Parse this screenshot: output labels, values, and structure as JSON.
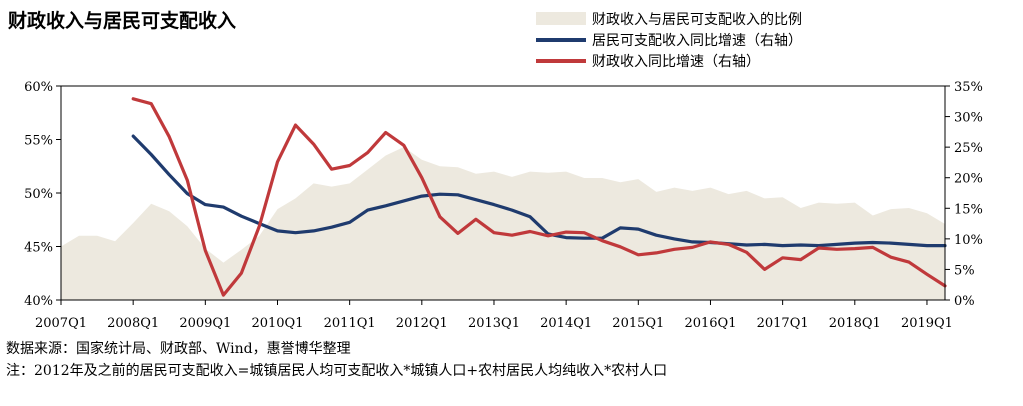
{
  "header": {
    "title": "财政收入与居民可支配收入"
  },
  "legend": [
    {
      "label": "财政收入与居民可支配收入的比例",
      "kind": "area",
      "color": "#ede9df"
    },
    {
      "label": "居民可支配收入同比增速（右轴）",
      "kind": "line",
      "color": "#1f3b6e"
    },
    {
      "label": "财政收入同比增速（右轴）",
      "kind": "line",
      "color": "#c0393b"
    }
  ],
  "notes": {
    "source": "数据来源：国家统计局、财政部、Wind，惠誉博华整理",
    "footnote": "注：2012年及之前的居民可支配收入=城镇居民人均可支配收入*城镇人口+农村居民人均纯收入*农村人口"
  },
  "chart_data": {
    "type": "line",
    "title": "财政收入与居民可支配收入",
    "x_ticks": [
      "2007Q1",
      "2008Q1",
      "2009Q1",
      "2010Q1",
      "2011Q1",
      "2012Q1",
      "2013Q1",
      "2014Q1",
      "2015Q1",
      "2016Q1",
      "2017Q1",
      "2018Q1",
      "2019Q1"
    ],
    "x_range": [
      2007.0,
      2019.25
    ],
    "y_left": {
      "ticks": [
        "40%",
        "45%",
        "50%",
        "55%",
        "60%"
      ],
      "range": [
        40,
        60
      ]
    },
    "y_right": {
      "ticks": [
        "0%",
        "5%",
        "10%",
        "15%",
        "20%",
        "25%",
        "30%",
        "35%"
      ],
      "range": [
        0,
        35
      ]
    },
    "series": [
      {
        "name": "财政收入与居民可支配收入的比例",
        "type": "area",
        "axis": "left",
        "color": "#ede9df",
        "points": [
          [
            2007.0,
            45.0
          ],
          [
            2007.25,
            46.0
          ],
          [
            2007.5,
            46.0
          ],
          [
            2007.75,
            45.5
          ],
          [
            2008.0,
            47.2
          ],
          [
            2008.25,
            49.0
          ],
          [
            2008.5,
            48.3
          ],
          [
            2008.75,
            46.9
          ],
          [
            2009.0,
            44.8
          ],
          [
            2009.25,
            43.5
          ],
          [
            2009.5,
            44.7
          ],
          [
            2009.75,
            46.0
          ],
          [
            2010.0,
            48.5
          ],
          [
            2010.25,
            49.5
          ],
          [
            2010.5,
            50.9
          ],
          [
            2010.75,
            50.6
          ],
          [
            2011.0,
            50.9
          ],
          [
            2011.25,
            52.2
          ],
          [
            2011.5,
            53.5
          ],
          [
            2011.75,
            54.3
          ],
          [
            2012.0,
            53.1
          ],
          [
            2012.25,
            52.5
          ],
          [
            2012.5,
            52.4
          ],
          [
            2012.75,
            51.8
          ],
          [
            2013.0,
            52.0
          ],
          [
            2013.25,
            51.5
          ],
          [
            2013.5,
            52.0
          ],
          [
            2013.75,
            51.9
          ],
          [
            2014.0,
            52.0
          ],
          [
            2014.25,
            51.4
          ],
          [
            2014.5,
            51.4
          ],
          [
            2014.75,
            51.0
          ],
          [
            2015.0,
            51.3
          ],
          [
            2015.25,
            50.1
          ],
          [
            2015.5,
            50.5
          ],
          [
            2015.75,
            50.2
          ],
          [
            2016.0,
            50.5
          ],
          [
            2016.25,
            49.9
          ],
          [
            2016.5,
            50.2
          ],
          [
            2016.75,
            49.5
          ],
          [
            2017.0,
            49.6
          ],
          [
            2017.25,
            48.6
          ],
          [
            2017.5,
            49.1
          ],
          [
            2017.75,
            49.0
          ],
          [
            2018.0,
            49.1
          ],
          [
            2018.25,
            47.9
          ],
          [
            2018.5,
            48.5
          ],
          [
            2018.75,
            48.6
          ],
          [
            2019.0,
            48.1
          ],
          [
            2019.25,
            47.1
          ]
        ]
      },
      {
        "name": "居民可支配收入同比增速（右轴）",
        "type": "line",
        "axis": "right",
        "color": "#1f3b6e",
        "points": [
          [
            2008.0,
            26.8
          ],
          [
            2008.25,
            23.8
          ],
          [
            2008.5,
            20.5
          ],
          [
            2008.75,
            17.4
          ],
          [
            2009.0,
            15.6
          ],
          [
            2009.25,
            15.2
          ],
          [
            2009.5,
            13.7
          ],
          [
            2009.75,
            12.5
          ],
          [
            2010.0,
            11.3
          ],
          [
            2010.25,
            11.0
          ],
          [
            2010.5,
            11.3
          ],
          [
            2010.75,
            11.9
          ],
          [
            2011.0,
            12.7
          ],
          [
            2011.25,
            14.7
          ],
          [
            2011.5,
            15.4
          ],
          [
            2011.75,
            16.2
          ],
          [
            2012.0,
            17.0
          ],
          [
            2012.25,
            17.3
          ],
          [
            2012.5,
            17.2
          ],
          [
            2012.75,
            16.4
          ],
          [
            2013.0,
            15.6
          ],
          [
            2013.25,
            14.7
          ],
          [
            2013.5,
            13.6
          ],
          [
            2013.75,
            10.8
          ],
          [
            2014.0,
            10.2
          ],
          [
            2014.25,
            10.1
          ],
          [
            2014.5,
            10.1
          ],
          [
            2014.75,
            11.8
          ],
          [
            2015.0,
            11.6
          ],
          [
            2015.25,
            10.6
          ],
          [
            2015.5,
            10.0
          ],
          [
            2015.75,
            9.5
          ],
          [
            2016.0,
            9.4
          ],
          [
            2016.25,
            9.2
          ],
          [
            2016.5,
            9.0
          ],
          [
            2016.75,
            9.1
          ],
          [
            2017.0,
            8.9
          ],
          [
            2017.25,
            9.0
          ],
          [
            2017.5,
            8.9
          ],
          [
            2017.75,
            9.1
          ],
          [
            2018.0,
            9.3
          ],
          [
            2018.25,
            9.4
          ],
          [
            2018.5,
            9.3
          ],
          [
            2018.75,
            9.1
          ],
          [
            2019.0,
            8.9
          ],
          [
            2019.25,
            8.9
          ]
        ]
      },
      {
        "name": "财政收入同比增速（右轴）",
        "type": "line",
        "axis": "right",
        "color": "#c0393b",
        "points": [
          [
            2008.0,
            32.9
          ],
          [
            2008.25,
            32.1
          ],
          [
            2008.5,
            26.7
          ],
          [
            2008.75,
            19.6
          ],
          [
            2009.0,
            8.1
          ],
          [
            2009.25,
            0.8
          ],
          [
            2009.5,
            4.4
          ],
          [
            2009.75,
            12.1
          ],
          [
            2010.0,
            22.6
          ],
          [
            2010.25,
            28.6
          ],
          [
            2010.5,
            25.5
          ],
          [
            2010.75,
            21.4
          ],
          [
            2011.0,
            22.0
          ],
          [
            2011.25,
            24.1
          ],
          [
            2011.5,
            27.4
          ],
          [
            2011.75,
            25.3
          ],
          [
            2012.0,
            20.0
          ],
          [
            2012.25,
            13.6
          ],
          [
            2012.5,
            10.9
          ],
          [
            2012.75,
            13.2
          ],
          [
            2013.0,
            11.0
          ],
          [
            2013.25,
            10.6
          ],
          [
            2013.5,
            11.2
          ],
          [
            2013.75,
            10.5
          ],
          [
            2014.0,
            11.1
          ],
          [
            2014.25,
            11.0
          ],
          [
            2014.5,
            9.7
          ],
          [
            2014.75,
            8.7
          ],
          [
            2015.0,
            7.4
          ],
          [
            2015.25,
            7.7
          ],
          [
            2015.5,
            8.3
          ],
          [
            2015.75,
            8.6
          ],
          [
            2016.0,
            9.5
          ],
          [
            2016.25,
            9.1
          ],
          [
            2016.5,
            7.8
          ],
          [
            2016.75,
            5.0
          ],
          [
            2017.0,
            6.9
          ],
          [
            2017.25,
            6.6
          ],
          [
            2017.5,
            8.5
          ],
          [
            2017.75,
            8.3
          ],
          [
            2018.0,
            8.4
          ],
          [
            2018.25,
            8.6
          ],
          [
            2018.5,
            7.0
          ],
          [
            2018.75,
            6.2
          ],
          [
            2019.0,
            4.2
          ],
          [
            2019.25,
            2.3
          ]
        ]
      }
    ],
    "legend_position": "top-right",
    "grid": false
  }
}
